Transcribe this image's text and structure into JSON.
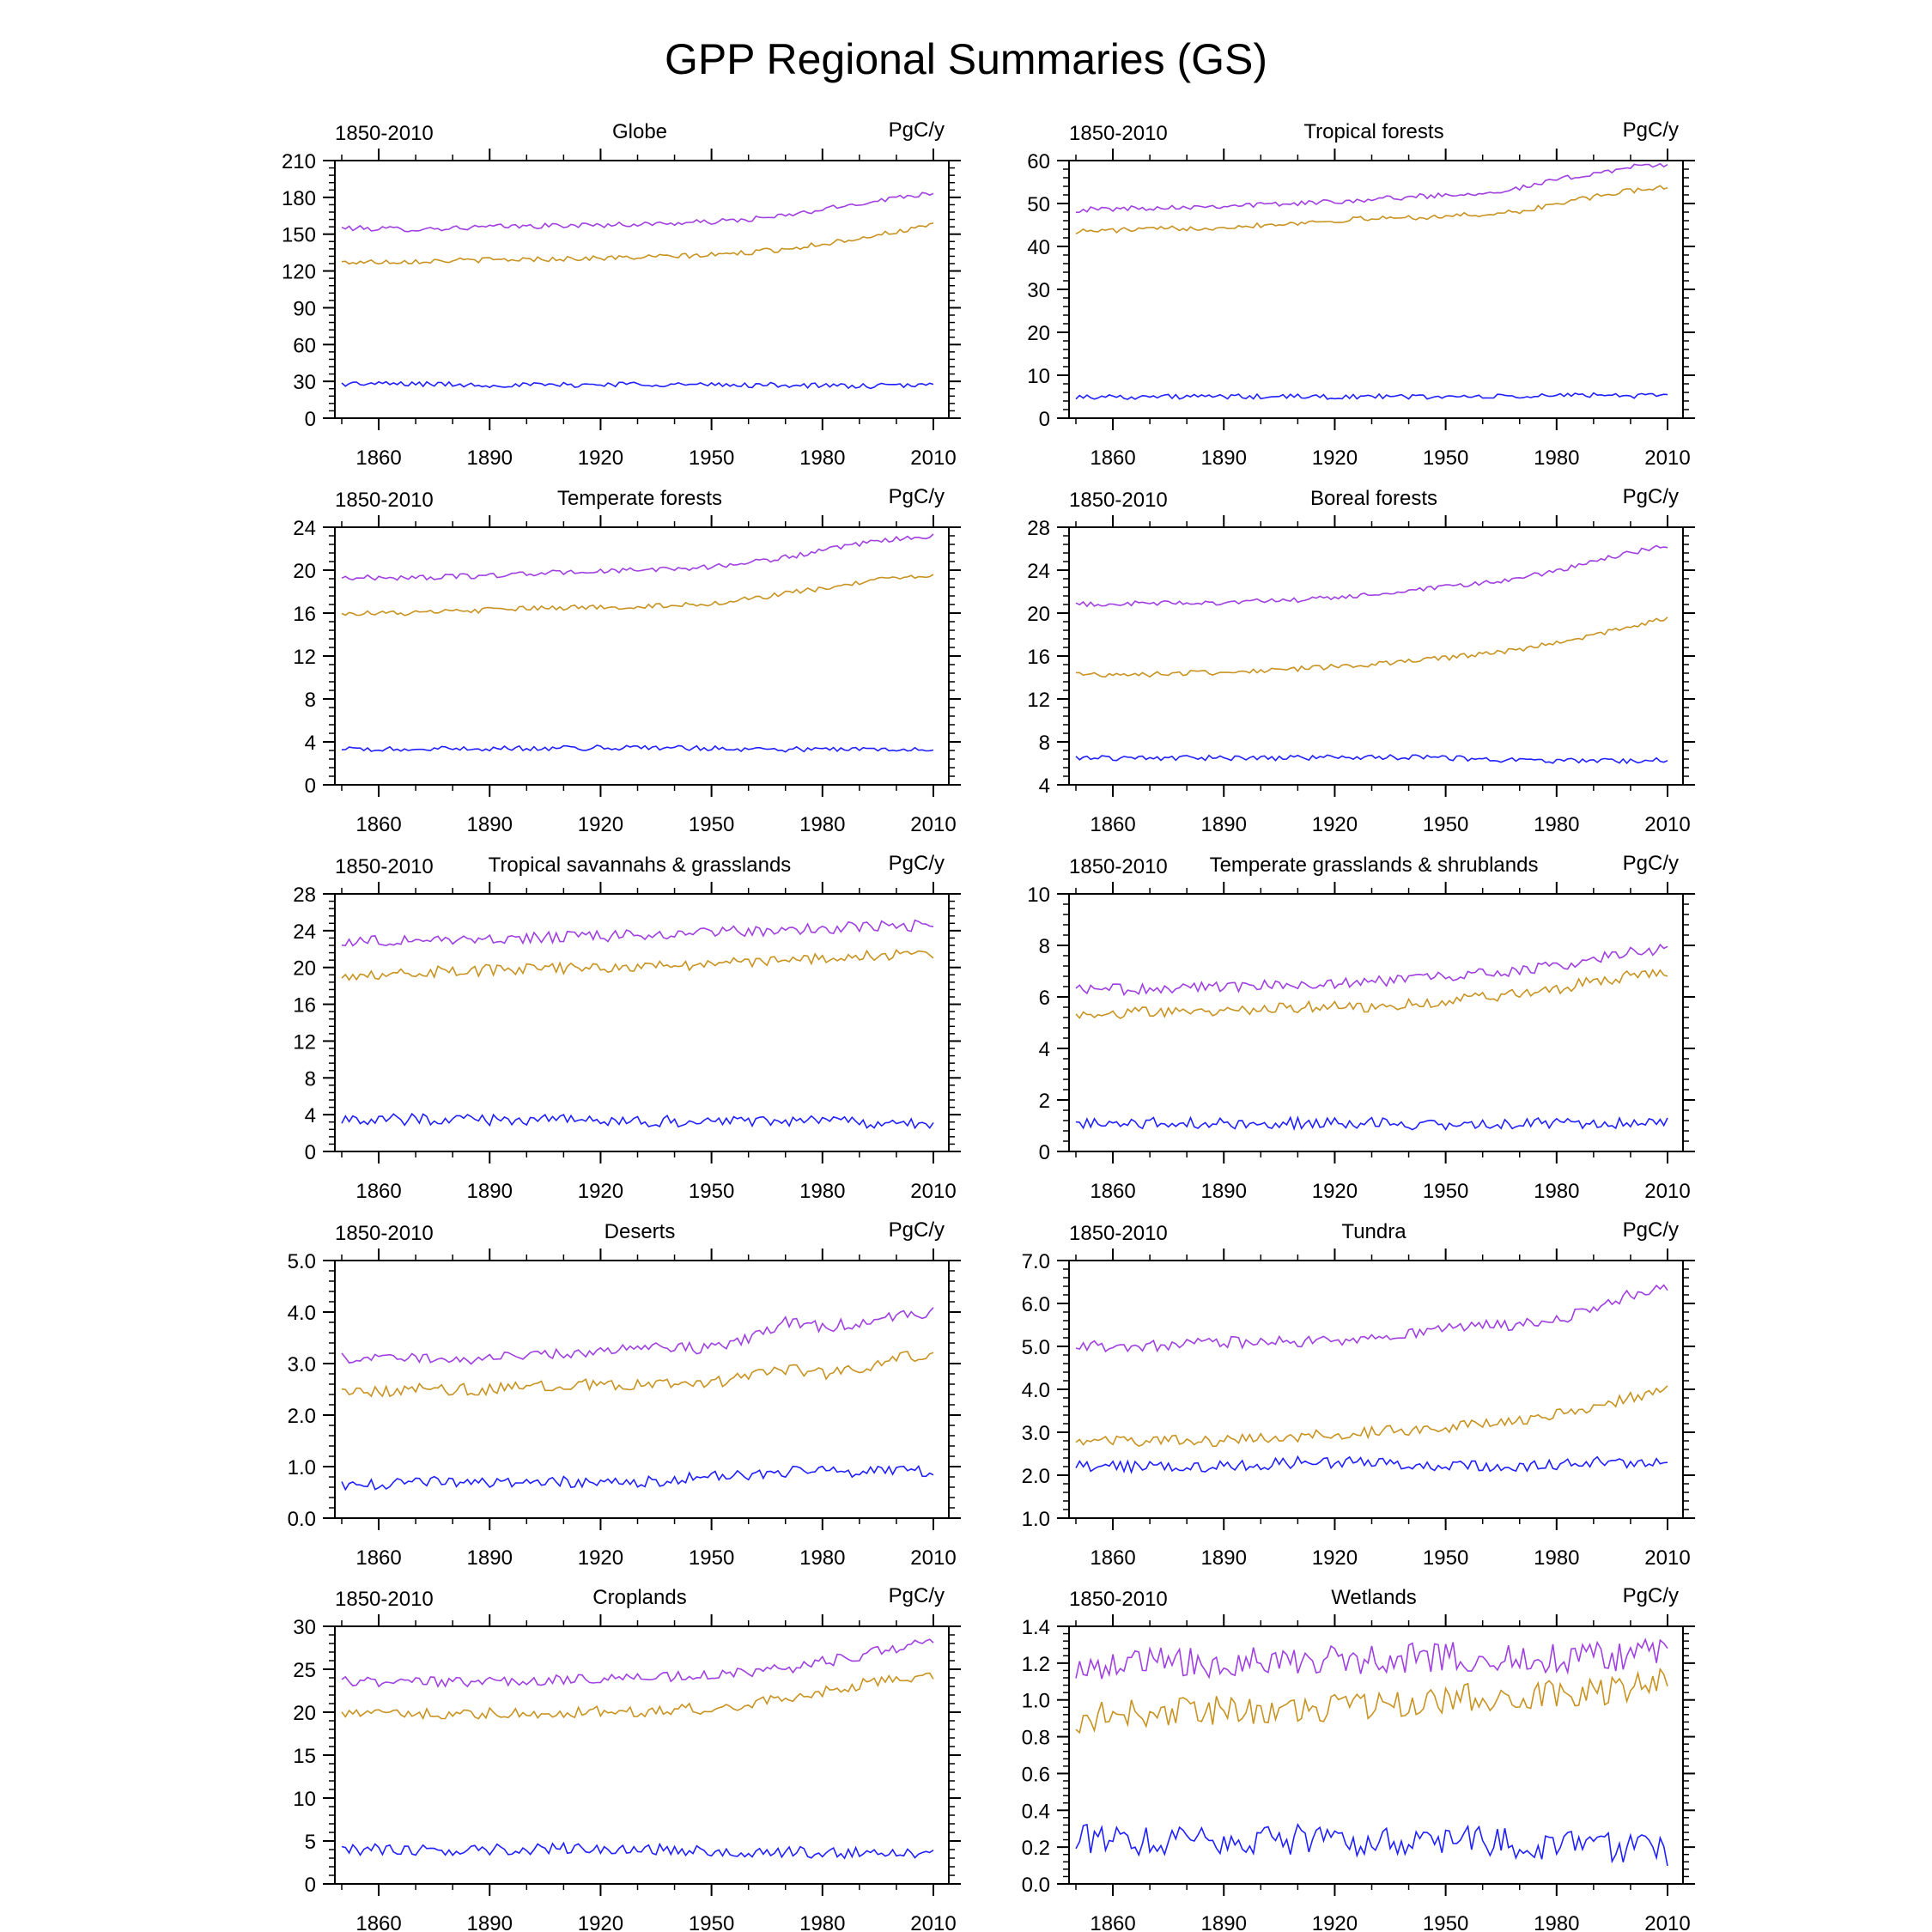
{
  "title": "GPP Regional Summaries (GS)",
  "colors": {
    "purple": "#a040e0",
    "gold": "#c89320",
    "blue": "#2020ff",
    "axis": "#000000"
  },
  "chart_data": [
    {
      "type": "line",
      "title": "Globe",
      "period": "1850-2010",
      "units": "PgC/y",
      "xlim": [
        1850,
        2010
      ],
      "xticks": [
        "1860",
        "1890",
        "1920",
        "1950",
        "1980",
        "2010"
      ],
      "ylim": [
        0,
        210
      ],
      "yticks": [
        "0",
        "30",
        "60",
        "90",
        "120",
        "150",
        "180",
        "210"
      ],
      "series": [
        {
          "color": "purple",
          "x": [
            1850,
            1870,
            1890,
            1910,
            1930,
            1950,
            1960,
            1970,
            1980,
            1990,
            2000,
            2010
          ],
          "y": [
            155,
            154,
            156,
            157,
            158,
            160,
            162,
            165,
            170,
            175,
            180,
            184
          ]
        },
        {
          "color": "gold",
          "x": [
            1850,
            1870,
            1890,
            1910,
            1930,
            1950,
            1960,
            1970,
            1980,
            1990,
            2000,
            2010
          ],
          "y": [
            127,
            128,
            129,
            130,
            131,
            133,
            135,
            138,
            142,
            147,
            152,
            157
          ]
        },
        {
          "color": "blue",
          "x": [
            1850,
            1870,
            1890,
            1910,
            1930,
            1950,
            1970,
            1990,
            2010
          ],
          "y": [
            28,
            28,
            27,
            27,
            28,
            27,
            27,
            26,
            27
          ]
        }
      ]
    },
    {
      "type": "line",
      "title": "Tropical forests",
      "period": "1850-2010",
      "units": "PgC/y",
      "xlim": [
        1850,
        2010
      ],
      "xticks": [
        "1860",
        "1890",
        "1920",
        "1950",
        "1980",
        "2010"
      ],
      "ylim": [
        0,
        60
      ],
      "yticks": [
        "0",
        "10",
        "20",
        "30",
        "40",
        "50",
        "60"
      ],
      "series": [
        {
          "color": "purple",
          "x": [
            1850,
            1870,
            1890,
            1910,
            1930,
            1950,
            1960,
            1970,
            1980,
            1990,
            2000,
            2010
          ],
          "y": [
            48.5,
            49,
            49.5,
            50,
            51,
            52,
            52.5,
            53.5,
            55.5,
            57,
            58.5,
            59
          ]
        },
        {
          "color": "gold",
          "x": [
            1850,
            1870,
            1890,
            1910,
            1930,
            1950,
            1960,
            1970,
            1980,
            1990,
            2000,
            2010
          ],
          "y": [
            43.5,
            44,
            44.5,
            45.5,
            46.5,
            47,
            47.5,
            48,
            50,
            51.5,
            53,
            54
          ]
        },
        {
          "color": "blue",
          "x": [
            1850,
            1870,
            1890,
            1910,
            1930,
            1950,
            1970,
            1990,
            2010
          ],
          "y": [
            5,
            5,
            5,
            5,
            5,
            5,
            5,
            5.5,
            5
          ]
        }
      ]
    },
    {
      "type": "line",
      "title": "Temperate forests",
      "period": "1850-2010",
      "units": "PgC/y",
      "xlim": [
        1850,
        2010
      ],
      "xticks": [
        "1860",
        "1890",
        "1920",
        "1950",
        "1980",
        "2010"
      ],
      "ylim": [
        0,
        24
      ],
      "yticks": [
        "0",
        "4",
        "8",
        "12",
        "16",
        "20",
        "24"
      ],
      "series": [
        {
          "color": "purple",
          "x": [
            1850,
            1870,
            1890,
            1910,
            1930,
            1950,
            1960,
            1970,
            1980,
            1990,
            2000,
            2010
          ],
          "y": [
            19.3,
            19.3,
            19.5,
            19.8,
            20,
            20.3,
            20.7,
            21.2,
            21.8,
            22.4,
            22.9,
            23.2
          ]
        },
        {
          "color": "gold",
          "x": [
            1850,
            1870,
            1890,
            1910,
            1930,
            1950,
            1960,
            1970,
            1980,
            1990,
            2000,
            2010
          ],
          "y": [
            16,
            16,
            16.3,
            16.5,
            16.6,
            16.9,
            17.3,
            17.8,
            18.3,
            18.8,
            19.3,
            19.6
          ]
        },
        {
          "color": "blue",
          "x": [
            1850,
            1870,
            1890,
            1910,
            1930,
            1950,
            1970,
            1990,
            2010
          ],
          "y": [
            3.3,
            3.3,
            3.4,
            3.4,
            3.5,
            3.4,
            3.3,
            3.3,
            3.4
          ]
        }
      ]
    },
    {
      "type": "line",
      "title": "Boreal forests",
      "period": "1850-2010",
      "units": "PgC/y",
      "xlim": [
        1850,
        2010
      ],
      "xticks": [
        "1860",
        "1890",
        "1920",
        "1950",
        "1980",
        "2010"
      ],
      "ylim": [
        4,
        28
      ],
      "yticks": [
        "4",
        "8",
        "12",
        "16",
        "20",
        "24",
        "28"
      ],
      "series": [
        {
          "color": "purple",
          "x": [
            1850,
            1870,
            1890,
            1910,
            1930,
            1950,
            1960,
            1970,
            1980,
            1990,
            2000,
            2010
          ],
          "y": [
            20.8,
            20.9,
            21,
            21.2,
            21.7,
            22.4,
            22.8,
            23.2,
            24,
            24.8,
            25.6,
            26.3
          ]
        },
        {
          "color": "gold",
          "x": [
            1850,
            1870,
            1890,
            1910,
            1930,
            1950,
            1960,
            1970,
            1980,
            1990,
            2000,
            2010
          ],
          "y": [
            14.3,
            14.3,
            14.5,
            14.8,
            15.2,
            15.8,
            16.2,
            16.6,
            17.3,
            17.9,
            18.8,
            19.5
          ]
        },
        {
          "color": "blue",
          "x": [
            1850,
            1870,
            1890,
            1910,
            1930,
            1950,
            1970,
            1990,
            2010
          ],
          "y": [
            6.5,
            6.5,
            6.5,
            6.5,
            6.6,
            6.5,
            6.3,
            6.2,
            6.3
          ]
        }
      ]
    },
    {
      "type": "line",
      "title": "Tropical savannahs & grasslands",
      "period": "1850-2010",
      "units": "PgC/y",
      "xlim": [
        1850,
        2010
      ],
      "xticks": [
        "1860",
        "1890",
        "1920",
        "1950",
        "1980",
        "2010"
      ],
      "ylim": [
        0,
        28
      ],
      "yticks": [
        "0",
        "4",
        "8",
        "12",
        "16",
        "20",
        "24",
        "28"
      ],
      "series": [
        {
          "color": "purple",
          "x": [
            1850,
            1870,
            1890,
            1910,
            1930,
            1950,
            1970,
            1990,
            2010
          ],
          "y": [
            22.8,
            23,
            23.1,
            23.3,
            23.5,
            23.8,
            24.1,
            24.4,
            24.6
          ]
        },
        {
          "color": "gold",
          "x": [
            1850,
            1870,
            1890,
            1910,
            1930,
            1950,
            1970,
            1990,
            2010
          ],
          "y": [
            19.2,
            19.5,
            19.7,
            19.9,
            20.1,
            20.4,
            20.8,
            21.2,
            21.6
          ]
        },
        {
          "color": "blue",
          "x": [
            1850,
            1870,
            1890,
            1910,
            1930,
            1950,
            1970,
            1990,
            2010
          ],
          "y": [
            3.4,
            3.5,
            3.4,
            3.4,
            3.3,
            3.3,
            3.4,
            3.2,
            2.9
          ]
        }
      ]
    },
    {
      "type": "line",
      "title": "Temperate grasslands & shrublands",
      "period": "1850-2010",
      "units": "PgC/y",
      "xlim": [
        1850,
        2010
      ],
      "xticks": [
        "1860",
        "1890",
        "1920",
        "1950",
        "1980",
        "2010"
      ],
      "ylim": [
        0,
        10
      ],
      "yticks": [
        "0",
        "2",
        "4",
        "6",
        "8",
        "10"
      ],
      "series": [
        {
          "color": "purple",
          "x": [
            1850,
            1870,
            1890,
            1910,
            1930,
            1950,
            1960,
            1970,
            1980,
            1990,
            2000,
            2010
          ],
          "y": [
            6.3,
            6.3,
            6.4,
            6.5,
            6.6,
            6.8,
            6.9,
            7,
            7.2,
            7.5,
            7.7,
            7.9
          ]
        },
        {
          "color": "gold",
          "x": [
            1850,
            1870,
            1890,
            1910,
            1930,
            1950,
            1960,
            1970,
            1980,
            1990,
            2000,
            2010
          ],
          "y": [
            5.3,
            5.4,
            5.5,
            5.6,
            5.6,
            5.8,
            6,
            6.1,
            6.3,
            6.6,
            6.8,
            6.9
          ]
        },
        {
          "color": "blue",
          "x": [
            1850,
            1870,
            1890,
            1910,
            1930,
            1950,
            1970,
            1990,
            2010
          ],
          "y": [
            1.1,
            1.1,
            1.1,
            1.1,
            1.1,
            1,
            1.1,
            1.1,
            1.1
          ]
        }
      ]
    },
    {
      "type": "line",
      "title": "Deserts",
      "period": "1850-2010",
      "units": "PgC/y",
      "xlim": [
        1850,
        2010
      ],
      "xticks": [
        "1860",
        "1890",
        "1920",
        "1950",
        "1980",
        "2010"
      ],
      "ylim": [
        0,
        5
      ],
      "yticks": [
        "0.0",
        "1.0",
        "2.0",
        "3.0",
        "4.0",
        "5.0"
      ],
      "series": [
        {
          "color": "purple",
          "x": [
            1850,
            1870,
            1890,
            1910,
            1930,
            1950,
            1960,
            1970,
            1980,
            1990,
            2000,
            2010
          ],
          "y": [
            3.1,
            3.1,
            3.1,
            3.2,
            3.3,
            3.3,
            3.5,
            3.8,
            3.7,
            3.8,
            3.9,
            4
          ]
        },
        {
          "color": "gold",
          "x": [
            1850,
            1870,
            1890,
            1910,
            1930,
            1950,
            1960,
            1970,
            1980,
            1990,
            2000,
            2010
          ],
          "y": [
            2.4,
            2.5,
            2.5,
            2.6,
            2.6,
            2.6,
            2.8,
            2.9,
            2.8,
            2.9,
            3.1,
            3.2
          ]
        },
        {
          "color": "blue",
          "x": [
            1850,
            1870,
            1890,
            1910,
            1930,
            1950,
            1970,
            1990,
            2010
          ],
          "y": [
            0.6,
            0.7,
            0.7,
            0.7,
            0.7,
            0.8,
            0.9,
            0.9,
            0.9
          ]
        }
      ]
    },
    {
      "type": "line",
      "title": "Tundra",
      "period": "1850-2010",
      "units": "PgC/y",
      "xlim": [
        1850,
        2010
      ],
      "xticks": [
        "1860",
        "1890",
        "1920",
        "1950",
        "1980",
        "2010"
      ],
      "ylim": [
        1,
        7
      ],
      "yticks": [
        "1.0",
        "2.0",
        "3.0",
        "4.0",
        "5.0",
        "6.0",
        "7.0"
      ],
      "series": [
        {
          "color": "purple",
          "x": [
            1850,
            1870,
            1890,
            1910,
            1930,
            1950,
            1960,
            1970,
            1980,
            1990,
            2000,
            2010
          ],
          "y": [
            5,
            5,
            5.1,
            5.1,
            5.2,
            5.4,
            5.5,
            5.5,
            5.6,
            5.9,
            6.2,
            6.4
          ]
        },
        {
          "color": "gold",
          "x": [
            1850,
            1870,
            1890,
            1910,
            1930,
            1950,
            1960,
            1970,
            1980,
            1990,
            2000,
            2010
          ],
          "y": [
            2.8,
            2.8,
            2.8,
            2.9,
            3,
            3.1,
            3.2,
            3.3,
            3.4,
            3.6,
            3.8,
            4
          ]
        },
        {
          "color": "blue",
          "x": [
            1850,
            1870,
            1890,
            1910,
            1930,
            1950,
            1970,
            1990,
            2010
          ],
          "y": [
            2.2,
            2.2,
            2.2,
            2.3,
            2.3,
            2.2,
            2.2,
            2.3,
            2.3
          ]
        }
      ]
    },
    {
      "type": "line",
      "title": "Croplands",
      "period": "1850-2010",
      "units": "PgC/y",
      "xlim": [
        1850,
        2010
      ],
      "xticks": [
        "1860",
        "1890",
        "1920",
        "1950",
        "1980",
        "2010"
      ],
      "ylim": [
        0,
        30
      ],
      "yticks": [
        "0",
        "5",
        "10",
        "15",
        "20",
        "25",
        "30"
      ],
      "series": [
        {
          "color": "purple",
          "x": [
            1850,
            1870,
            1890,
            1910,
            1930,
            1950,
            1960,
            1970,
            1980,
            1990,
            2000,
            2010
          ],
          "y": [
            23.5,
            23.5,
            23.6,
            23.8,
            24,
            24.3,
            24.6,
            25,
            25.8,
            26.6,
            27.5,
            28.2
          ]
        },
        {
          "color": "gold",
          "x": [
            1850,
            1870,
            1890,
            1910,
            1930,
            1950,
            1960,
            1970,
            1980,
            1990,
            2000,
            2010
          ],
          "y": [
            19.7,
            19.8,
            19.9,
            20,
            20.1,
            20.5,
            21,
            21.6,
            22.4,
            23.2,
            23.9,
            24.4
          ]
        },
        {
          "color": "blue",
          "x": [
            1850,
            1870,
            1890,
            1910,
            1930,
            1950,
            1970,
            1990,
            2010
          ],
          "y": [
            4,
            4,
            4,
            4.1,
            4.1,
            3.8,
            3.7,
            3.6,
            3.6
          ]
        }
      ]
    },
    {
      "type": "line",
      "title": "Wetlands",
      "period": "1850-2010",
      "units": "PgC/y",
      "xlim": [
        1850,
        2010
      ],
      "xticks": [
        "1860",
        "1890",
        "1920",
        "1950",
        "1980",
        "2010"
      ],
      "ylim": [
        0,
        1.4
      ],
      "yticks": [
        "0.0",
        "0.2",
        "0.4",
        "0.6",
        "0.8",
        "1.0",
        "1.2",
        "1.4"
      ],
      "series": [
        {
          "color": "purple",
          "x": [
            1850,
            1870,
            1890,
            1910,
            1930,
            1950,
            1970,
            1990,
            2010
          ],
          "y": [
            1.18,
            1.2,
            1.2,
            1.21,
            1.22,
            1.24,
            1.22,
            1.23,
            1.25
          ]
        },
        {
          "color": "gold",
          "x": [
            1850,
            1870,
            1890,
            1910,
            1930,
            1950,
            1970,
            1990,
            2010
          ],
          "y": [
            0.9,
            0.93,
            0.95,
            0.96,
            0.98,
            1.01,
            1,
            1.05,
            1.1
          ]
        },
        {
          "color": "blue",
          "x": [
            1850,
            1870,
            1890,
            1910,
            1930,
            1950,
            1970,
            1990,
            2010
          ],
          "y": [
            0.25,
            0.24,
            0.25,
            0.24,
            0.23,
            0.25,
            0.22,
            0.2,
            0.18
          ]
        }
      ]
    }
  ]
}
